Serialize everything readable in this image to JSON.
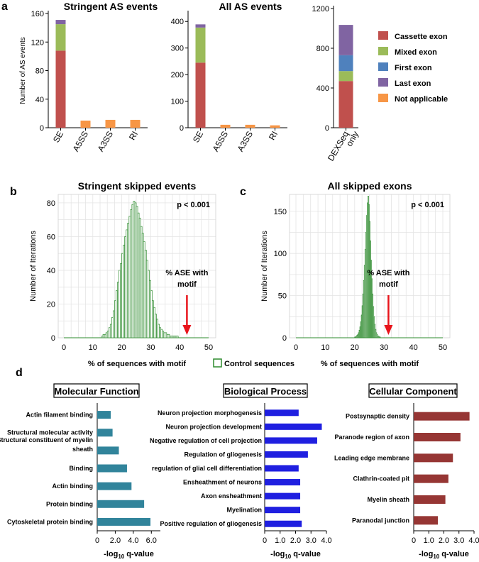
{
  "panel_labels": [
    "a",
    "b",
    "c",
    "d"
  ],
  "colors": {
    "cassette": "#c0504d",
    "mixed": "#9bbb59",
    "first": "#4f81bd",
    "last": "#8064a2",
    "na": "#f79646",
    "hist": "#2e8b2e",
    "mf_bar": "#31849b",
    "bp_bar": "#1f1fe0",
    "cc_bar": "#963634",
    "arrow": "#e8141b"
  },
  "legend_a": [
    {
      "label": "Cassette exon",
      "key": "cassette"
    },
    {
      "label": "Mixed exon",
      "key": "mixed"
    },
    {
      "label": "First exon",
      "key": "first"
    },
    {
      "label": "Last exon",
      "key": "last"
    },
    {
      "label": "Not applicable",
      "key": "na"
    }
  ],
  "legend_bc": {
    "label": "Control sequences"
  },
  "chart_data": [
    {
      "id": "a1",
      "type": "bar",
      "stacked": true,
      "title": "Stringent AS events",
      "ylabel": "Number of AS events",
      "categories": [
        "SE",
        "A5SS",
        "A3SS",
        "RI"
      ],
      "ylim": [
        0,
        160
      ],
      "yticks": [
        0,
        40,
        80,
        120,
        160
      ],
      "series": [
        {
          "name": "Cassette exon",
          "key": "cassette",
          "values": [
            108,
            0,
            0,
            0
          ]
        },
        {
          "name": "Mixed exon",
          "key": "mixed",
          "values": [
            37,
            0,
            0,
            0
          ]
        },
        {
          "name": "First exon",
          "key": "first",
          "values": [
            0,
            0,
            0,
            0
          ]
        },
        {
          "name": "Last exon",
          "key": "last",
          "values": [
            6,
            0,
            0,
            0
          ]
        },
        {
          "name": "Not applicable",
          "key": "na",
          "values": [
            0,
            10,
            11,
            11
          ]
        }
      ]
    },
    {
      "id": "a2",
      "type": "bar",
      "stacked": true,
      "title": "All AS events",
      "ylabel": "",
      "categories": [
        "SE",
        "A5SS",
        "A3SS",
        "RI"
      ],
      "ylim": [
        0,
        430
      ],
      "yticks": [
        0,
        100,
        200,
        300,
        400
      ],
      "series": [
        {
          "name": "Cassette exon",
          "key": "cassette",
          "values": [
            245,
            0,
            0,
            0
          ]
        },
        {
          "name": "Mixed exon",
          "key": "mixed",
          "values": [
            132,
            0,
            0,
            0
          ]
        },
        {
          "name": "First exon",
          "key": "first",
          "values": [
            0,
            0,
            0,
            0
          ]
        },
        {
          "name": "Last exon",
          "key": "last",
          "values": [
            12,
            0,
            0,
            0
          ]
        },
        {
          "name": "Not applicable",
          "key": "na",
          "values": [
            0,
            11,
            11,
            9
          ]
        }
      ]
    },
    {
      "id": "a3",
      "type": "bar",
      "stacked": true,
      "title": "",
      "ylabel": "",
      "categories": [
        "DEXSeq only"
      ],
      "ylim": [
        0,
        1200
      ],
      "yticks": [
        0,
        400,
        800,
        1200
      ],
      "series": [
        {
          "name": "Cassette exon",
          "key": "cassette",
          "values": [
            470
          ]
        },
        {
          "name": "Mixed exon",
          "key": "mixed",
          "values": [
            100
          ]
        },
        {
          "name": "First exon",
          "key": "first",
          "values": [
            160
          ]
        },
        {
          "name": "Last exon",
          "key": "last",
          "values": [
            305
          ]
        },
        {
          "name": "Not applicable",
          "key": "na",
          "values": [
            0
          ]
        }
      ]
    },
    {
      "id": "b",
      "type": "histogram",
      "title": "Stringent skipped events",
      "xlabel": "% of sequences with motif",
      "ylabel": "Number of Iterations",
      "annotation": "p < 0.001",
      "arrow_label": [
        "% ASE with",
        "motif"
      ],
      "arrow_x": 42.5,
      "xlim": [
        0,
        50
      ],
      "xticks": [
        0,
        10,
        20,
        30,
        40,
        50
      ],
      "ylim": [
        0,
        85
      ],
      "yticks": [
        0,
        20,
        40,
        60,
        80
      ],
      "bin_width": 0.5,
      "x": [
        13,
        13.5,
        14,
        14.5,
        15,
        15.5,
        16,
        16.5,
        17,
        17.5,
        18,
        18.5,
        19,
        19.5,
        20,
        20.5,
        21,
        21.5,
        22,
        22.5,
        23,
        23.5,
        24,
        24.5,
        25,
        25.5,
        26,
        26.5,
        27,
        27.5,
        28,
        28.5,
        29,
        29.5,
        30,
        30.5,
        31,
        31.5,
        32,
        32.5,
        33,
        33.5,
        34,
        34.5,
        35,
        35.5,
        36,
        36.5,
        37,
        37.5,
        38,
        38.5,
        39
      ],
      "values": [
        1,
        2,
        2,
        3,
        4,
        6,
        8,
        12,
        16,
        22,
        28,
        33,
        40,
        44,
        50,
        55,
        60,
        64,
        68,
        72,
        76,
        79,
        81,
        80,
        78,
        74,
        71,
        66,
        62,
        57,
        52,
        46,
        40,
        34,
        28,
        22,
        18,
        14,
        11,
        8,
        6,
        5,
        4,
        3,
        3,
        2,
        2,
        1,
        1,
        1,
        1,
        1,
        1
      ]
    },
    {
      "id": "c",
      "type": "histogram",
      "title": "All skipped exons",
      "xlabel": "% of sequences with motif",
      "ylabel": "Number of Iterations",
      "annotation": "p < 0.001",
      "arrow_label": [
        "% ASE with",
        "motif"
      ],
      "arrow_x": 31.5,
      "xlim": [
        0,
        50
      ],
      "xticks": [
        0,
        10,
        20,
        30,
        40,
        50
      ],
      "ylim": [
        0,
        170
      ],
      "yticks": [
        0,
        50,
        100,
        150
      ],
      "bin_width": 0.25,
      "x": [
        20,
        20.25,
        20.5,
        20.75,
        21,
        21.25,
        21.5,
        21.75,
        22,
        22.25,
        22.5,
        22.75,
        23,
        23.25,
        23.5,
        23.75,
        24,
        24.25,
        24.5,
        24.75,
        25,
        25.25,
        25.5,
        25.75,
        26,
        26.25,
        26.5,
        26.75,
        27,
        27.25,
        27.5,
        27.75,
        28,
        28.25,
        28.5
      ],
      "values": [
        1,
        1,
        2,
        3,
        4,
        6,
        9,
        13,
        19,
        27,
        38,
        52,
        68,
        86,
        105,
        125,
        145,
        160,
        168,
        158,
        138,
        115,
        92,
        70,
        52,
        37,
        25,
        16,
        10,
        6,
        4,
        2,
        2,
        1,
        1
      ]
    },
    {
      "id": "d1",
      "type": "bar",
      "orientation": "horizontal",
      "title": "Molecular Function",
      "xlabel_main": "-log",
      "xlabel_sub": "10",
      "xlabel_tail": " q-value",
      "xlim": [
        0,
        7
      ],
      "xticks": [
        0,
        2,
        4,
        6
      ],
      "xtick_labels": [
        "0",
        "2.0",
        "4.0",
        "6.0"
      ],
      "categories": [
        "Actin filament binding",
        "Structural molecular activity",
        "Structural constituent of myelin sheath",
        "Binding",
        "Actin binding",
        "Protein binding",
        "Cytoskeletal protein binding"
      ],
      "category_lines": [
        [
          "Actin filament binding"
        ],
        [
          "Structural molecular activity"
        ],
        [
          "Structural constituent of myelin",
          "sheath"
        ],
        [
          "Binding"
        ],
        [
          "Actin binding"
        ],
        [
          "Protein binding"
        ],
        [
          "Cytoskeletal protein binding"
        ]
      ],
      "values": [
        1.5,
        1.7,
        2.4,
        3.3,
        3.8,
        5.2,
        5.9
      ]
    },
    {
      "id": "d2",
      "type": "bar",
      "orientation": "horizontal",
      "title": "Biological Process",
      "xlabel_main": "-log",
      "xlabel_sub": "10",
      "xlabel_tail": " q-value",
      "xlim": [
        0,
        4
      ],
      "xticks": [
        0,
        1,
        2,
        3,
        4
      ],
      "xtick_labels": [
        "0",
        "1.0",
        "2.0",
        "3.0",
        "4.0"
      ],
      "categories": [
        "Neuron projection morphogenesis",
        "Neuron projection development",
        "Negative regulation of cell projection",
        "Regulation of gliogenesis",
        "regulation of glial cell differentiation",
        "Ensheathment of neurons",
        "Axon ensheathment",
        "Myelination",
        "Positive regulation of gliogenesis"
      ],
      "category_lines": [
        [
          "Neuron projection morphogenesis"
        ],
        [
          "Neuron projection development"
        ],
        [
          "Negative regulation of cell projection"
        ],
        [
          "Regulation of gliogenesis"
        ],
        [
          "regulation of glial cell differentiation"
        ],
        [
          "Ensheathment of neurons"
        ],
        [
          "Axon ensheathment"
        ],
        [
          "Myelination"
        ],
        [
          "Positive regulation of gliogenesis"
        ]
      ],
      "values": [
        2.2,
        3.7,
        3.4,
        2.8,
        2.2,
        2.3,
        2.3,
        2.3,
        2.4
      ]
    },
    {
      "id": "d3",
      "type": "bar",
      "orientation": "horizontal",
      "title": "Cellular Component",
      "xlabel_main": "-log",
      "xlabel_sub": "10",
      "xlabel_tail": " q-value",
      "xlim": [
        0,
        4
      ],
      "xticks": [
        0,
        1,
        2,
        3,
        4
      ],
      "xtick_labels": [
        "0",
        "1.0",
        "2.0",
        "3.0",
        "4.0"
      ],
      "categories": [
        "Postsynaptic density",
        "Paranode region of axon",
        "Leading edge membrane",
        "Clathrin-coated pit",
        "Myelin sheath",
        "Paranodal junction"
      ],
      "category_lines": [
        [
          "Postsynaptic density"
        ],
        [
          "Paranode region of axon"
        ],
        [
          "Leading edge membrane"
        ],
        [
          "Clathrin-coated pit"
        ],
        [
          "Myelin sheath"
        ],
        [
          "Paranodal junction"
        ]
      ],
      "values": [
        3.7,
        3.1,
        2.6,
        2.3,
        2.1,
        1.6
      ]
    }
  ]
}
